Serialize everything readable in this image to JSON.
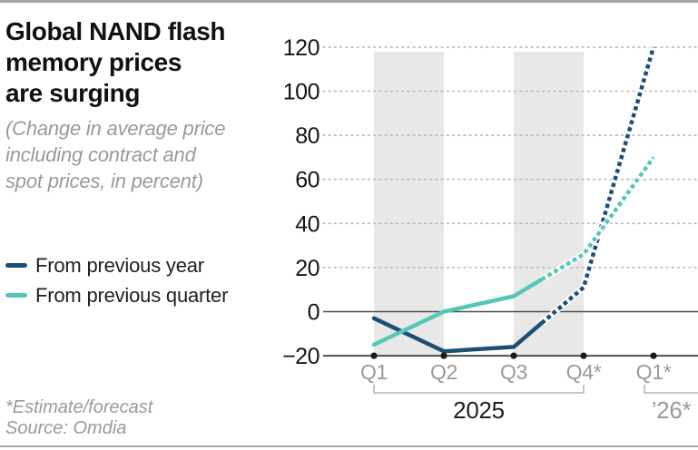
{
  "header": {
    "title_lines": [
      "Global NAND flash",
      "memory prices",
      "are surging"
    ],
    "subtitle_lines": [
      "(Change in average price",
      "including contract and",
      "spot prices, in percent)"
    ]
  },
  "legend": {
    "items": [
      {
        "label": "From previous year",
        "color": "#1d4e74"
      },
      {
        "label": "From previous quarter",
        "color": "#55c7b7"
      }
    ]
  },
  "footnotes": {
    "estimate_note": "*Estimate/forecast",
    "source": "Source: Omdia"
  },
  "colors": {
    "navy": "#1d4e74",
    "teal": "#55c7b7",
    "band": "#e8e8e8",
    "grid_dot": "#b9b9b9",
    "zero_line": "#4d4d4d",
    "axis": "#4d4d4d",
    "tick_dot": "#1a1a1a",
    "x_label": "#9a9a9a",
    "y_label": "#151515",
    "bracket": "#b3b3b3"
  },
  "chart_data": {
    "type": "line",
    "title": "Global NAND flash memory prices are surging",
    "subtitle": "(Change in average price including contract and spot prices, in percent)",
    "source": "Source: Omdia",
    "note": "*Estimate/forecast",
    "categories": [
      "Q1",
      "Q2",
      "Q3",
      "Q4*",
      "Q1*"
    ],
    "series": [
      {
        "name": "From previous year",
        "color": "#1d4e74",
        "values": [
          -3,
          -18,
          -16,
          11,
          120
        ]
      },
      {
        "name": "From previous quarter",
        "color": "#55c7b7",
        "values": [
          -15,
          0,
          7,
          26,
          70
        ]
      }
    ],
    "forecast_dash_start_x": 2.4,
    "ylim": [
      -20,
      120
    ],
    "yticks": [
      {
        "v": 120,
        "label": "120"
      },
      {
        "v": 100,
        "label": "100"
      },
      {
        "v": 80,
        "label": "80"
      },
      {
        "v": 60,
        "label": "60"
      },
      {
        "v": 40,
        "label": "40"
      },
      {
        "v": 20,
        "label": "20"
      },
      {
        "v": 0,
        "label": "0"
      },
      {
        "v": -20,
        "label": "−20"
      }
    ],
    "grid": "dotted horizontal, shaded vertical bands Q1–Q2 and Q3–Q4",
    "legend_position": "left",
    "bands": [
      [
        0,
        1
      ],
      [
        2,
        3
      ]
    ],
    "year_groups": [
      {
        "label": "2025",
        "from": 0,
        "to": 3,
        "label_color": "#1f1f1f",
        "to_edge": false
      },
      {
        "label": "’26*",
        "from": 4,
        "to": 4,
        "label_color": "#9a9a9a",
        "to_edge": true
      }
    ]
  }
}
